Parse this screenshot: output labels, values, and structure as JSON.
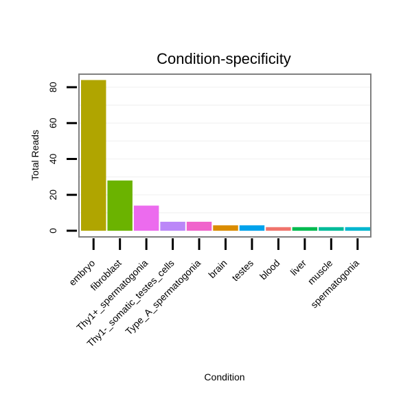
{
  "chart_data": {
    "type": "bar",
    "title": "Condition-specificity",
    "xlabel": "Condition",
    "ylabel": "Total Reads",
    "categories": [
      "embryo",
      "fibroblast",
      "Thy1+_spermatogonia",
      "Thy1-_somatic_testes_cells",
      "Type_A_spermatogonia",
      "brain",
      "testes",
      "blood",
      "liver",
      "muscle",
      "spermatogonia"
    ],
    "values": [
      84,
      28,
      14,
      5,
      5,
      3,
      3,
      2,
      2,
      2,
      2
    ],
    "colors": [
      "#B0A500",
      "#6BB300",
      "#EC6BEE",
      "#BB87F8",
      "#F064CC",
      "#DA8C00",
      "#00A2EC",
      "#F0746C",
      "#00BA50",
      "#00BB9A",
      "#00B6CF"
    ],
    "ylim": [
      0,
      88
    ],
    "yticks": [
      0,
      20,
      40,
      60,
      80
    ],
    "grid": true,
    "legend": "none"
  }
}
